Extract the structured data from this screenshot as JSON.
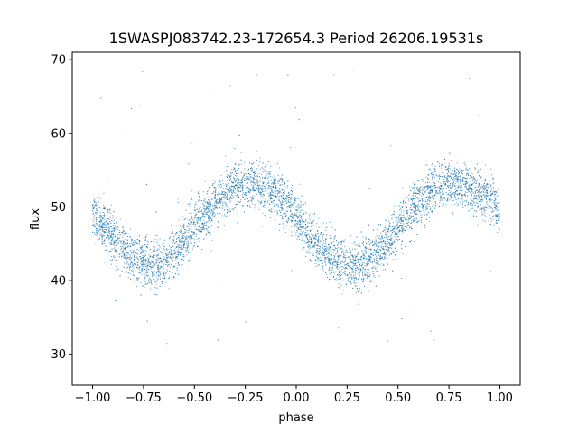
{
  "chart_data": {
    "type": "scatter",
    "title": "1SWASPJ083742.23-172654.3 Period 26206.19531s",
    "xlabel": "phase",
    "ylabel": "flux",
    "xlim": [
      -1.1,
      1.1
    ],
    "ylim": [
      25.8,
      71
    ],
    "grid": false,
    "point_color": "#1f77b4",
    "xticks": [
      -1.0,
      -0.75,
      -0.5,
      -0.25,
      0.0,
      0.25,
      0.5,
      0.75,
      1.0
    ],
    "xtick_labels": [
      "−1.00",
      "−0.75",
      "−0.50",
      "−0.25",
      "0.00",
      "0.25",
      "0.50",
      "0.75",
      "1.00"
    ],
    "yticks": [
      30,
      40,
      50,
      60,
      70
    ],
    "ytick_labels": [
      "30",
      "40",
      "50",
      "60",
      "70"
    ],
    "series": [
      {
        "x": [
          -1.0,
          -0.95,
          -0.9,
          -0.85,
          -0.8,
          -0.75,
          -0.7,
          -0.65,
          -0.6,
          -0.55,
          -0.5,
          -0.45,
          -0.4,
          -0.35,
          -0.3,
          -0.25,
          -0.2,
          -0.15,
          -0.1,
          -0.05,
          0.0,
          0.05,
          0.1,
          0.15,
          0.2,
          0.25,
          0.3,
          0.35,
          0.4,
          0.45,
          0.5,
          0.55,
          0.6,
          0.65,
          0.7,
          0.75,
          0.8,
          0.85,
          0.9,
          0.95,
          1.0
        ],
        "y": [
          49.0,
          47.5,
          46.0,
          44.5,
          43.3,
          42.5,
          42.2,
          42.6,
          43.8,
          45.5,
          47.3,
          49.0,
          50.6,
          51.8,
          52.7,
          53.1,
          53.0,
          52.6,
          51.8,
          50.4,
          48.6,
          46.6,
          44.8,
          43.4,
          42.6,
          42.2,
          42.2,
          42.6,
          43.6,
          45.2,
          47.0,
          48.8,
          50.5,
          51.9,
          52.8,
          53.2,
          53.1,
          52.6,
          52.0,
          51.2,
          49.5
        ]
      }
    ]
  }
}
